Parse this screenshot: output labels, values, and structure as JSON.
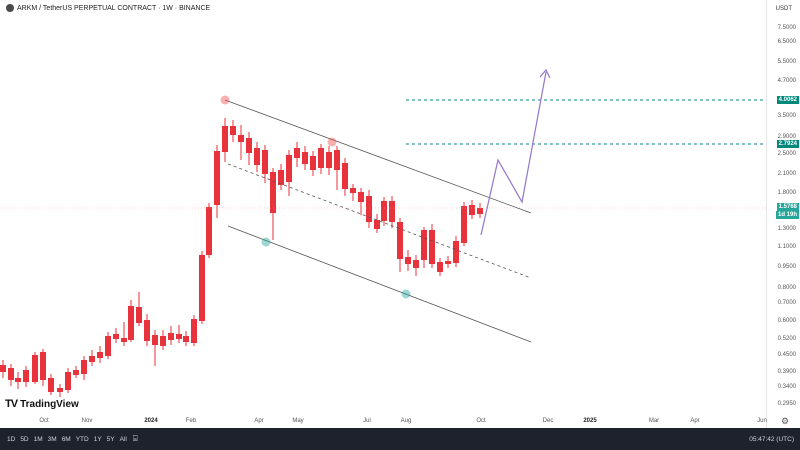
{
  "header": {
    "symbol_title": "ARKM / TetherUS PERPETUAL CONTRACT · 1W · BINANCE",
    "logo_icon": "arkm-logo-icon"
  },
  "price_axis": {
    "currency": "USDT",
    "labels": [
      "7.5000",
      "6.5000",
      "5.5000",
      "4.7000",
      "3.5000",
      "2.9000",
      "2.5000",
      "2.1000",
      "1.8000",
      "1.3000",
      "1.1000",
      "0.9500",
      "0.8000",
      "0.7000",
      "0.6000",
      "0.5200",
      "0.4500",
      "0.3900",
      "0.3400",
      "0.2950"
    ],
    "badges": [
      {
        "value": "4.0062",
        "color": "#00897b"
      },
      {
        "value": "2.7924",
        "color": "#00897b"
      },
      {
        "value": "1.5768",
        "color": "#26a69a"
      },
      {
        "value": "1d 19h",
        "color": "#26a69a"
      }
    ]
  },
  "time_axis": {
    "labels": [
      {
        "text": "Oct",
        "bold": false
      },
      {
        "text": "Nov",
        "bold": false
      },
      {
        "text": "2024",
        "bold": true
      },
      {
        "text": "Feb",
        "bold": false
      },
      {
        "text": "Apr",
        "bold": false
      },
      {
        "text": "May",
        "bold": false
      },
      {
        "text": "Jul",
        "bold": false
      },
      {
        "text": "Aug",
        "bold": false
      },
      {
        "text": "Oct",
        "bold": false
      },
      {
        "text": "Dec",
        "bold": false
      },
      {
        "text": "2025",
        "bold": true
      },
      {
        "text": "Mar",
        "bold": false
      },
      {
        "text": "Apr",
        "bold": false
      },
      {
        "text": "Jun",
        "bold": false
      }
    ]
  },
  "watermark": {
    "brand": "TradingView",
    "mark": "TV"
  },
  "bottom_bar": {
    "timeframes": [
      "1D",
      "5D",
      "1M",
      "3M",
      "6M",
      "YTD",
      "1Y",
      "5Y",
      "All"
    ],
    "clock": "05:47:42 (UTC)"
  },
  "colors": {
    "up": "#26a69a",
    "down": "#ef5350",
    "up_bright": "#22ab4a",
    "down_bright": "#e8323c",
    "target_line": "#00897b",
    "projection": "#9575cd",
    "channel": "#555555"
  }
}
